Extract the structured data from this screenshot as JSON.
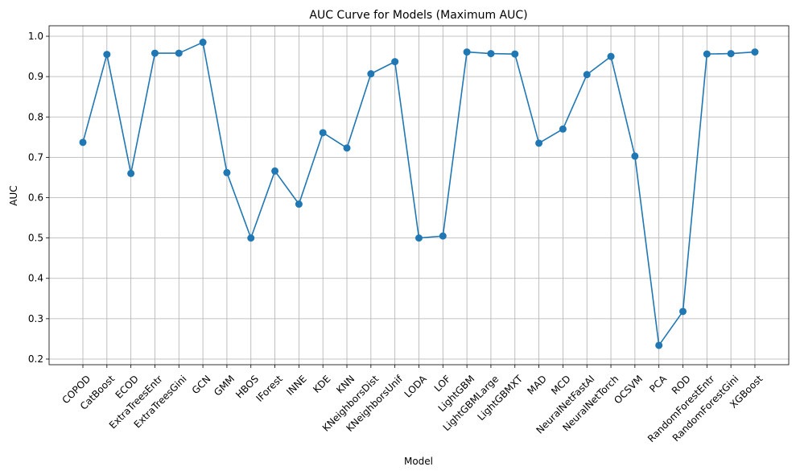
{
  "chart_data": {
    "type": "line",
    "title": "AUC Curve for Models (Maximum AUC)",
    "xlabel": "Model",
    "ylabel": "AUC",
    "ylim": [
      0.186,
      1.026
    ],
    "yticks": [
      0.2,
      0.3,
      0.4,
      0.5,
      0.6,
      0.7,
      0.8,
      0.9,
      1.0
    ],
    "ytick_labels": [
      "0.2",
      "0.3",
      "0.4",
      "0.5",
      "0.6",
      "0.7",
      "0.8",
      "0.9",
      "1.0"
    ],
    "grid": true,
    "marker": "circle",
    "color": "#1f77b4",
    "categories": [
      "COPOD",
      "CatBoost",
      "ECOD",
      "ExtraTreesEntr",
      "ExtraTreesGini",
      "GCN",
      "GMM",
      "HBOS",
      "IForest",
      "INNE",
      "KDE",
      "KNN",
      "KNeighborsDist",
      "KNeighborsUnif",
      "LODA",
      "LOF",
      "LightGBM",
      "LightGBMLarge",
      "LightGBMXT",
      "MAD",
      "MCD",
      "NeuralNetFastAI",
      "NeuralNetTorch",
      "OCSVM",
      "PCA",
      "ROD",
      "RandomForestEntr",
      "RandomForestGini",
      "XGBoost"
    ],
    "values": [
      0.737,
      0.955,
      0.66,
      0.958,
      0.958,
      0.985,
      0.662,
      0.5,
      0.666,
      0.584,
      0.761,
      0.723,
      0.907,
      0.937,
      0.5,
      0.505,
      0.961,
      0.957,
      0.956,
      0.735,
      0.77,
      0.905,
      0.95,
      0.703,
      0.234,
      0.318,
      0.956,
      0.957,
      0.961
    ]
  }
}
